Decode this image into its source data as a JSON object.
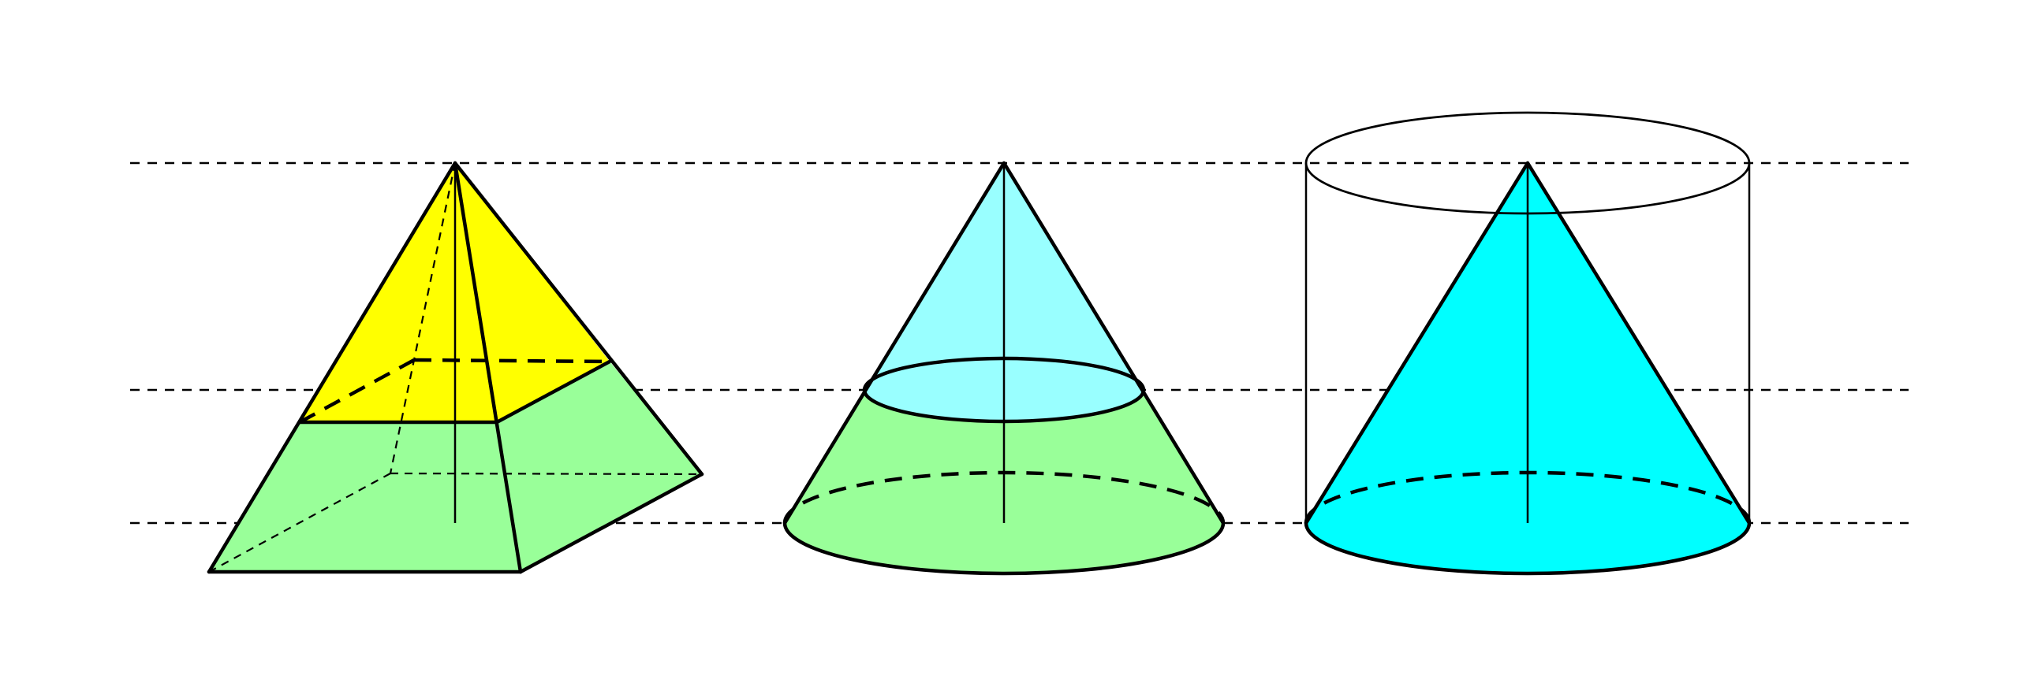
{
  "figure": {
    "description_shapes": [
      "pyramid-cross-section",
      "cone-cross-section",
      "cone-in-cylinder"
    ],
    "colors": {
      "background": "#ffffff",
      "stroke": "#000000",
      "pyramid_top": "#ffff00",
      "lower_section": "#99ff99",
      "cone_top": "#99ffff",
      "inscribed_cone": "#00ffff"
    }
  }
}
